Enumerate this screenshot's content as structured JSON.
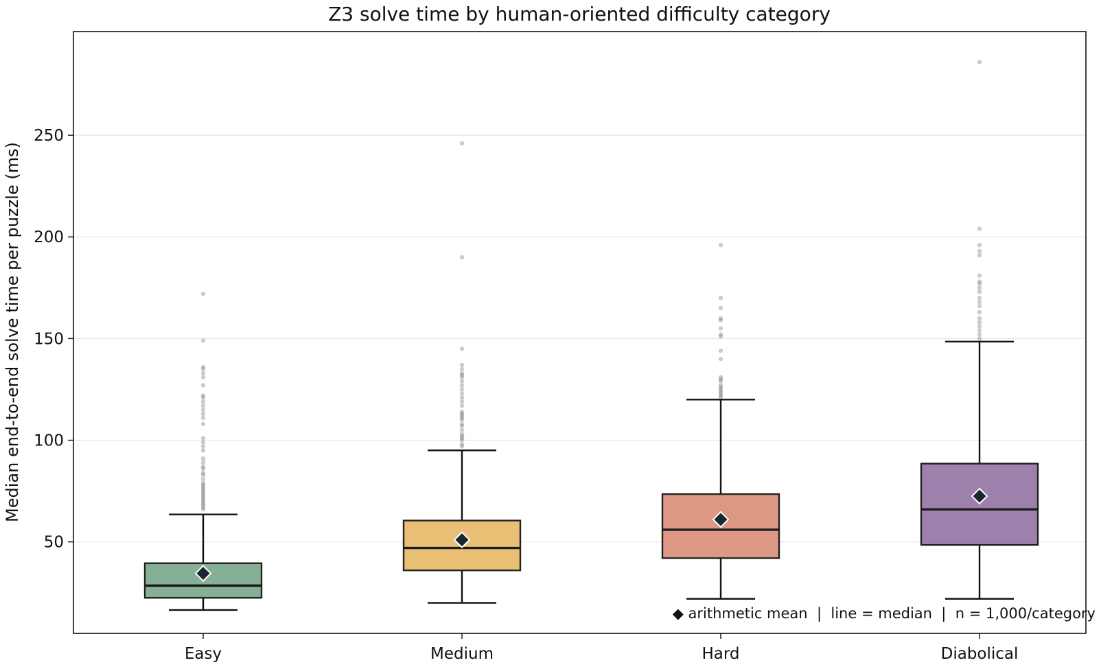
{
  "chart_data": {
    "type": "box",
    "title": "Z3 solve time by human-oriented difficulty category",
    "xlabel": "",
    "ylabel": "Median end-to-end solve time per puzzle (ms)",
    "ylim": [
      5,
      301
    ],
    "yticks": [
      50,
      100,
      150,
      200,
      250
    ],
    "grid": "horizontal",
    "annotation": "◆ arithmetic mean  |  line = median  |  n = 1,000/category",
    "categories": [
      "Easy",
      "Medium",
      "Hard",
      "Diabolical"
    ],
    "colors": [
      "#86b096",
      "#e8bf74",
      "#dc9882",
      "#9e80ac"
    ],
    "boxes": [
      {
        "category": "Easy",
        "whisker_low": 16.5,
        "q1": 22.5,
        "median": 28.5,
        "q3": 39.5,
        "whisker_high": 63.5,
        "mean": 34.5,
        "outliers": [
          66,
          67,
          68,
          69,
          70,
          71,
          72,
          73,
          74,
          75,
          76,
          77,
          78,
          79,
          81,
          83,
          84,
          86,
          87,
          89,
          91,
          95,
          97,
          99,
          101,
          108,
          111,
          113,
          115,
          117,
          119,
          121,
          122,
          127,
          131,
          133,
          135,
          136,
          149,
          172
        ]
      },
      {
        "category": "Medium",
        "whisker_low": 20.0,
        "q1": 36.0,
        "median": 47.0,
        "q3": 60.5,
        "whisker_high": 95.0,
        "mean": 51.0,
        "outliers": [
          97,
          98,
          100,
          101,
          102,
          103,
          105,
          107,
          108,
          110,
          111,
          112,
          113,
          114,
          117,
          119,
          121,
          123,
          125,
          127,
          129,
          131,
          132,
          133,
          135,
          137,
          145,
          190,
          246
        ]
      },
      {
        "category": "Hard",
        "whisker_low": 22.0,
        "q1": 42.0,
        "median": 56.0,
        "q3": 73.5,
        "whisker_high": 120.0,
        "mean": 61.0,
        "outliers": [
          121,
          122,
          123,
          124,
          125,
          126,
          127,
          129,
          130,
          131,
          140,
          144,
          151,
          152,
          155,
          159,
          160,
          165,
          170,
          196
        ]
      },
      {
        "category": "Diabolical",
        "whisker_low": 22.0,
        "q1": 48.5,
        "median": 66.0,
        "q3": 88.5,
        "whisker_high": 148.5,
        "mean": 72.5,
        "outliers": [
          150,
          152,
          154,
          156,
          158,
          160,
          163,
          166,
          168,
          170,
          173,
          175,
          177,
          178,
          181,
          191,
          193,
          196,
          204,
          286
        ]
      }
    ]
  }
}
